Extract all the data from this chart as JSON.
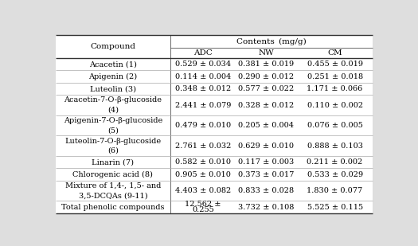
{
  "col_span_header": "Contents (mg/g)",
  "sub_headers": [
    "ADC",
    "NW",
    "CM"
  ],
  "rows": [
    {
      "compound": "Acacetin (1)",
      "compound_lines": 1,
      "adc": "0.529 ± 0.034",
      "nw": "0.381 ± 0.019",
      "cm": "0.455 ± 0.019"
    },
    {
      "compound": "Apigenin (2)",
      "compound_lines": 1,
      "adc": "0.114 ± 0.004",
      "nw": "0.290 ± 0.012",
      "cm": "0.251 ± 0.018"
    },
    {
      "compound": "Luteolin (3)",
      "compound_lines": 1,
      "adc": "0.348 ± 0.012",
      "nw": "0.577 ± 0.022",
      "cm": "1.171 ± 0.066"
    },
    {
      "compound": "Acacetin-7-O-β-glucoside\n(4)",
      "compound_lines": 2,
      "adc": "2.441 ± 0.079",
      "nw": "0.328 ± 0.012",
      "cm": "0.110 ± 0.002"
    },
    {
      "compound": "Apigenin-7-O-β-glucoside\n(5)",
      "compound_lines": 2,
      "adc": "0.479 ± 0.010",
      "nw": "0.205 ± 0.004",
      "cm": "0.076 ± 0.005"
    },
    {
      "compound": "Luteolin-7-O-β-glucoside\n(6)",
      "compound_lines": 2,
      "adc": "2.761 ± 0.032",
      "nw": "0.629 ± 0.010",
      "cm": "0.888 ± 0.103"
    },
    {
      "compound": "Linarin (7)",
      "compound_lines": 1,
      "adc": "0.582 ± 0.010",
      "nw": "0.117 ± 0.003",
      "cm": "0.211 ± 0.002"
    },
    {
      "compound": "Chlorogenic acid (8)",
      "compound_lines": 1,
      "adc": "0.905 ± 0.010",
      "nw": "0.373 ± 0.017",
      "cm": "0.533 ± 0.029"
    },
    {
      "compound": "Mixture of 1,4-, 1,5- and\n3,5-DCQAs (9-11)",
      "compound_lines": 2,
      "adc": "4.403 ± 0.082",
      "nw": "0.833 ± 0.028",
      "cm": "1.830 ± 0.077"
    },
    {
      "compound": "Total phenolic compounds",
      "compound_lines": 1,
      "adc": "12.562 ±\n0.255",
      "nw": "3.732 ± 0.108",
      "cm": "5.525 ± 0.115"
    }
  ],
  "bg_color": "#dedede",
  "table_bg": "#ffffff",
  "font_size": 7.0,
  "font_size_header": 7.5,
  "fig_width": 5.25,
  "fig_height": 3.09,
  "dpi": 100
}
